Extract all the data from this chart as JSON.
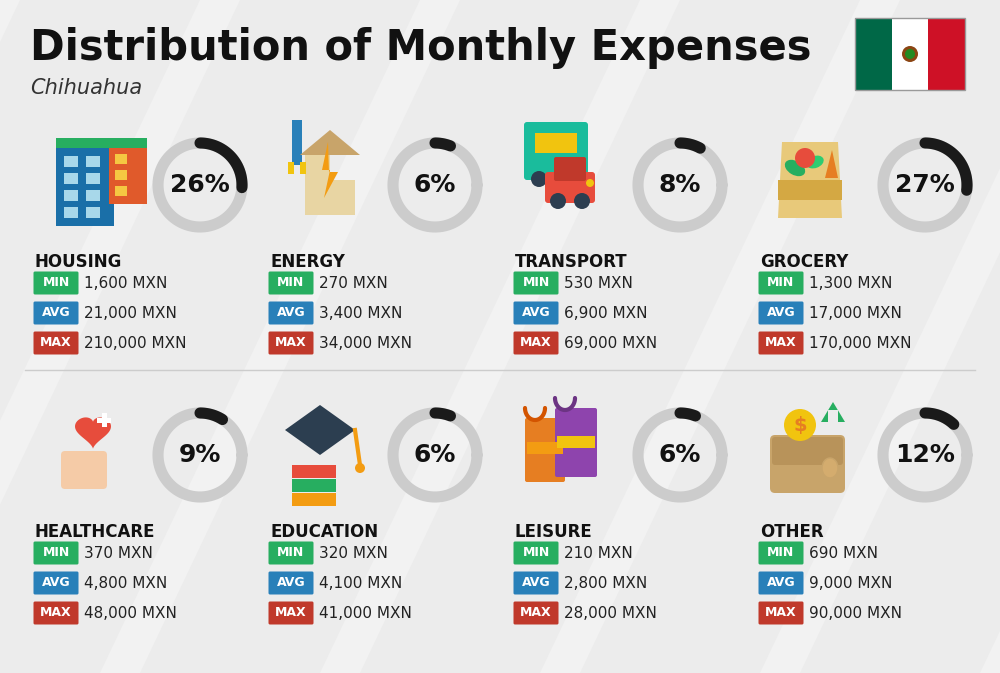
{
  "title": "Distribution of Monthly Expenses",
  "subtitle": "Chihuahua",
  "background_color": "#f2f2f2",
  "categories": [
    {
      "name": "HOUSING",
      "percent": 26,
      "min": "1,600 MXN",
      "avg": "21,000 MXN",
      "max": "210,000 MXN",
      "row": 0,
      "col": 0
    },
    {
      "name": "ENERGY",
      "percent": 6,
      "min": "270 MXN",
      "avg": "3,400 MXN",
      "max": "34,000 MXN",
      "row": 0,
      "col": 1
    },
    {
      "name": "TRANSPORT",
      "percent": 8,
      "min": "530 MXN",
      "avg": "6,900 MXN",
      "max": "69,000 MXN",
      "row": 0,
      "col": 2
    },
    {
      "name": "GROCERY",
      "percent": 27,
      "min": "1,300 MXN",
      "avg": "17,000 MXN",
      "max": "170,000 MXN",
      "row": 0,
      "col": 3
    },
    {
      "name": "HEALTHCARE",
      "percent": 9,
      "min": "370 MXN",
      "avg": "4,800 MXN",
      "max": "48,000 MXN",
      "row": 1,
      "col": 0
    },
    {
      "name": "EDUCATION",
      "percent": 6,
      "min": "320 MXN",
      "avg": "4,100 MXN",
      "max": "41,000 MXN",
      "row": 1,
      "col": 1
    },
    {
      "name": "LEISURE",
      "percent": 6,
      "min": "210 MXN",
      "avg": "2,800 MXN",
      "max": "28,000 MXN",
      "row": 1,
      "col": 2
    },
    {
      "name": "OTHER",
      "percent": 12,
      "min": "690 MXN",
      "avg": "9,000 MXN",
      "max": "90,000 MXN",
      "row": 1,
      "col": 3
    }
  ],
  "color_min": "#27ae60",
  "color_avg": "#2980b9",
  "color_max": "#c0392b",
  "label_color": "#ffffff",
  "arc_color_filled": "#1a1a1a",
  "arc_color_empty": "#cccccc",
  "flag_colors": [
    "#006847",
    "#ffffff",
    "#ce1126"
  ],
  "title_fontsize": 30,
  "subtitle_fontsize": 15,
  "category_fontsize": 12,
  "percent_fontsize": 18,
  "value_fontsize": 11
}
